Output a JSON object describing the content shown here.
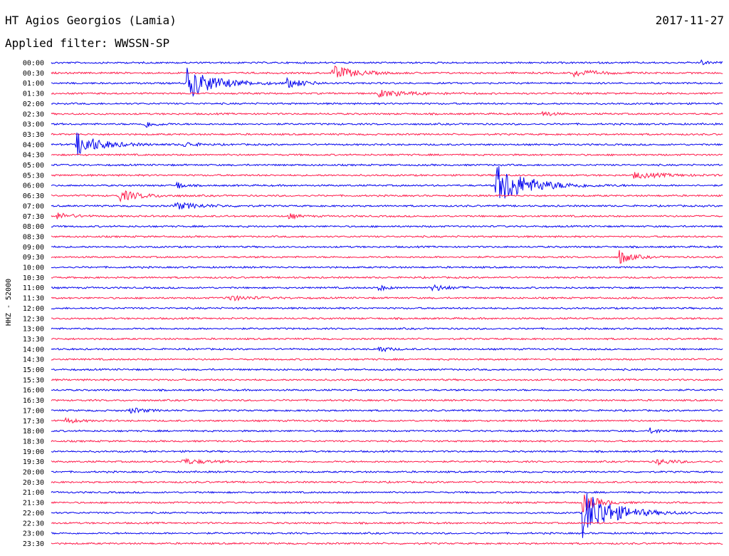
{
  "header": {
    "station": "HT Agios Georgios (Lamia)",
    "date": "2017-11-27",
    "filter": "Applied filter: WWSSN-SP"
  },
  "colors": {
    "blue": "#0000ee",
    "red": "#ff1a4a"
  },
  "chart_data": {
    "type": "line",
    "title": "HT Agios Georgios (Lamia)",
    "subtitle": "Applied filter: WWSSN-SP",
    "ylabel": "HHZ - 52000",
    "rows": [
      "00:00",
      "00:30",
      "01:00",
      "01:30",
      "02:00",
      "02:30",
      "03:00",
      "03:30",
      "04:00",
      "04:30",
      "05:00",
      "05:30",
      "06:00",
      "06:30",
      "07:00",
      "07:30",
      "08:00",
      "08:30",
      "09:00",
      "09:30",
      "10:00",
      "10:30",
      "11:00",
      "11:30",
      "12:00",
      "12:30",
      "13:00",
      "13:30",
      "14:00",
      "14:30",
      "15:00",
      "15:30",
      "16:00",
      "16:30",
      "17:00",
      "17:30",
      "18:00",
      "18:30",
      "19:00",
      "19:30",
      "20:00",
      "20:30",
      "21:00",
      "21:30",
      "22:00",
      "22:30",
      "23:00",
      "23:30"
    ],
    "row_minutes": 30,
    "colors_cycle": [
      "blue",
      "red"
    ],
    "events": [
      {
        "row": 0,
        "minute": 29.0,
        "amplitude": 3,
        "decay": 0.6
      },
      {
        "row": 1,
        "minute": 12.5,
        "amplitude": 11,
        "decay": 1.5
      },
      {
        "row": 1,
        "minute": 23.3,
        "amplitude": 5,
        "decay": 1.5
      },
      {
        "row": 2,
        "minute": 6.0,
        "amplitude": 22,
        "decay": 2.0
      },
      {
        "row": 2,
        "minute": 10.5,
        "amplitude": 6,
        "decay": 1.2
      },
      {
        "row": 3,
        "minute": 14.5,
        "amplitude": 5,
        "decay": 2.2
      },
      {
        "row": 5,
        "minute": 21.9,
        "amplitude": 5,
        "decay": 0.6
      },
      {
        "row": 6,
        "minute": 4.1,
        "amplitude": 6,
        "decay": 0.7
      },
      {
        "row": 8,
        "minute": 1.1,
        "amplitude": 17,
        "decay": 1.6
      },
      {
        "row": 8,
        "minute": 5.9,
        "amplitude": 4,
        "decay": 0.8
      },
      {
        "row": 11,
        "minute": 26.0,
        "amplitude": 4,
        "decay": 2.2
      },
      {
        "row": 12,
        "minute": 19.8,
        "amplitude": 30,
        "decay": 2.2
      },
      {
        "row": 12,
        "minute": 5.6,
        "amplitude": 6,
        "decay": 0.4
      },
      {
        "row": 13,
        "minute": 3.0,
        "amplitude": 8,
        "decay": 1.5
      },
      {
        "row": 14,
        "minute": 5.5,
        "amplitude": 5,
        "decay": 1.8
      },
      {
        "row": 15,
        "minute": 0.2,
        "amplitude": 5,
        "decay": 1.0
      },
      {
        "row": 15,
        "minute": 10.6,
        "amplitude": 4,
        "decay": 0.6
      },
      {
        "row": 19,
        "minute": 25.3,
        "amplitude": 12,
        "decay": 0.8
      },
      {
        "row": 22,
        "minute": 16.9,
        "amplitude": 5,
        "decay": 1.2
      },
      {
        "row": 22,
        "minute": 14.6,
        "amplitude": 4,
        "decay": 0.6
      },
      {
        "row": 23,
        "minute": 7.8,
        "amplitude": 4,
        "decay": 1.6
      },
      {
        "row": 28,
        "minute": 14.6,
        "amplitude": 5,
        "decay": 0.6
      },
      {
        "row": 34,
        "minute": 3.5,
        "amplitude": 4,
        "decay": 1.0
      },
      {
        "row": 35,
        "minute": 0.6,
        "amplitude": 4,
        "decay": 0.8
      },
      {
        "row": 36,
        "minute": 26.7,
        "amplitude": 4,
        "decay": 0.8
      },
      {
        "row": 39,
        "minute": 5.8,
        "amplitude": 4,
        "decay": 1.6
      },
      {
        "row": 39,
        "minute": 27.0,
        "amplitude": 4,
        "decay": 1.2
      },
      {
        "row": 44,
        "minute": 23.7,
        "amplitude": 35,
        "decay": 2.0
      },
      {
        "row": 43,
        "minute": 23.7,
        "amplitude": 14,
        "decay": 1.0
      }
    ]
  }
}
